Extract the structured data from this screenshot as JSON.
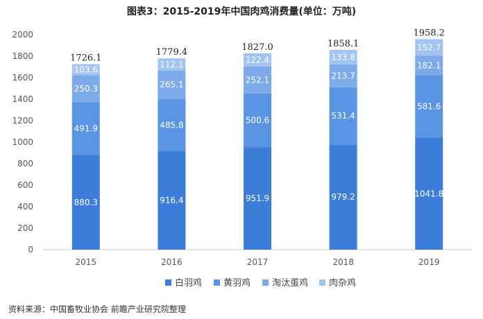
{
  "chart_data": {
    "type": "bar",
    "stacked": true,
    "title": "图表3：2015-2019年中国肉鸡消费量(单位：万吨)",
    "categories": [
      "2015",
      "2016",
      "2017",
      "2018",
      "2019"
    ],
    "series": [
      {
        "name": "白羽鸡",
        "values": [
          "880.3",
          "916.4",
          "951.9",
          "979.2",
          "1041.8"
        ],
        "color": "#3c7dd9"
      },
      {
        "name": "黄羽鸡",
        "values": [
          "491.9",
          "485.8",
          "500.6",
          "531.4",
          "581.6"
        ],
        "color": "#5a95e3"
      },
      {
        "name": "淘汰蛋鸡",
        "values": [
          "250.3",
          "265.1",
          "252.1",
          "213.7",
          "182.1"
        ],
        "color": "#7dabe9"
      },
      {
        "name": "肉杂鸡",
        "values": [
          "103.6",
          "112.1",
          "122.4",
          "133.8",
          "152.7"
        ],
        "color": "#a3c4f0"
      }
    ],
    "totals": [
      "1726.1",
      "1779.4",
      "1827.0",
      "1858.1",
      "1958.2"
    ],
    "y_ticks": [
      "0",
      "200",
      "400",
      "600",
      "800",
      "1000",
      "1200",
      "1400",
      "1600",
      "1800",
      "2000"
    ],
    "ylim": [
      0,
      2000
    ],
    "legend_position": "bottom",
    "grid": false
  },
  "source": "资料来源：中国畜牧业协会 前瞻产业研究院整理"
}
